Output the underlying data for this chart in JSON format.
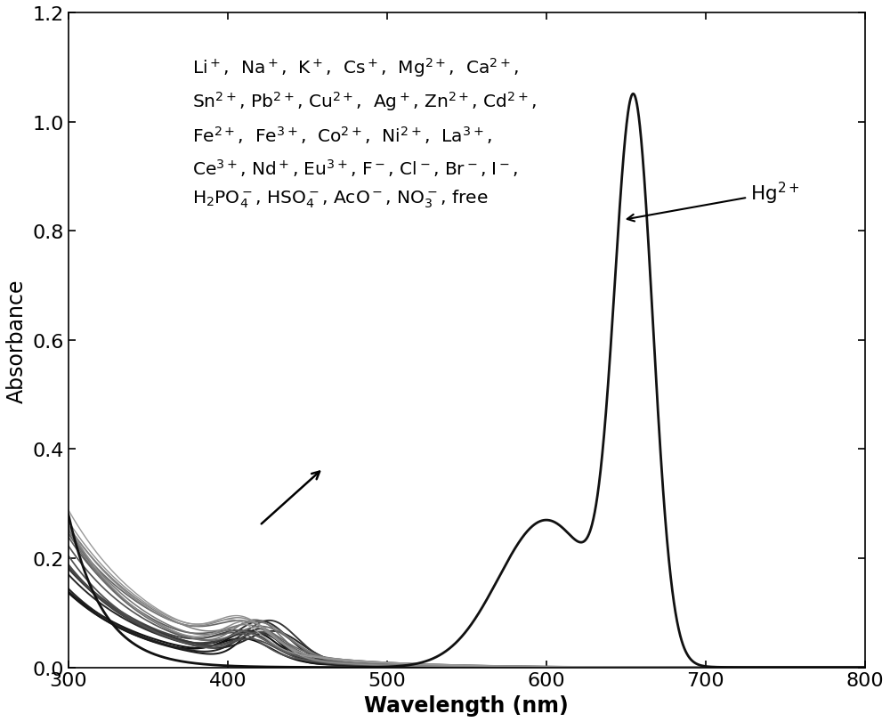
{
  "title": "",
  "xlabel": "Wavelength (nm)",
  "ylabel": "Absorbance",
  "xlim": [
    300,
    800
  ],
  "ylim": [
    0,
    1.2
  ],
  "xticks": [
    300,
    400,
    500,
    600,
    700,
    800
  ],
  "yticks": [
    0.0,
    0.2,
    0.4,
    0.6,
    0.8,
    1.0,
    1.2
  ],
  "background_color": "#ffffff",
  "line_color_hg": "#111111",
  "annotation_text_line1": "Li$^+$,  Na$^+$,  K$^+$,  Cs$^+$,  Mg$^{2+}$,  Ca$^{2+}$,",
  "annotation_text_line2": "Sn$^{2+}$, Pb$^{2+}$, Cu$^{2+}$,  Ag$^+$, Zn$^{2+}$, Cd$^{2+}$,",
  "annotation_text_line3": "Fe$^{2+}$,  Fe$^{3+}$,  Co$^{2+}$,  Ni$^{2+}$,  La$^{3+}$,",
  "annotation_text_line4": "Ce$^{3+}$, Nd$^+$, Eu$^{3+}$, F$^-$, Cl$^-$, Br$^-$, I$^-$,",
  "annotation_text_line5": "H$_2$PO$_4^-$, HSO$_4^-$, AcO$^-$, NO$_3^-$, free",
  "hg_label": "Hg$^{2+}$",
  "xlabel_fontsize": 17,
  "ylabel_fontsize": 17,
  "tick_fontsize": 16,
  "annotation_fontsize": 14.5
}
